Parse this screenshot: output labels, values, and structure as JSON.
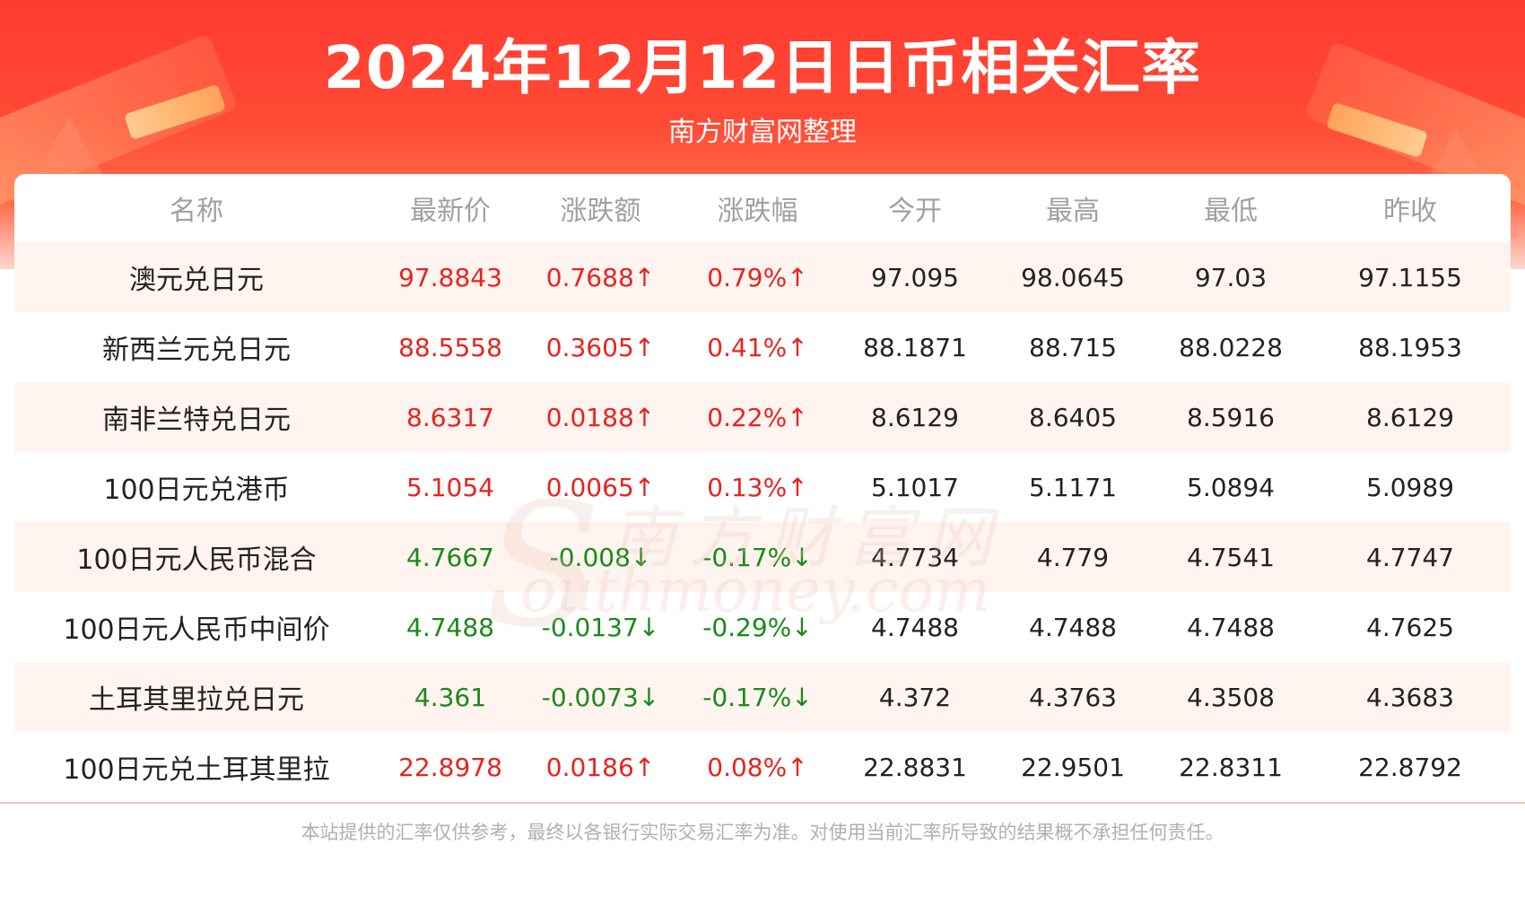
{
  "header": {
    "title": "2024年12月12日日币相关汇率",
    "subtitle": "南方财富网整理"
  },
  "watermark": {
    "cn": "南方财富网",
    "en": "outhmoney.com",
    "s": "S"
  },
  "table": {
    "columns": [
      "名称",
      "最新价",
      "涨跌额",
      "涨跌幅",
      "今开",
      "最高",
      "最低",
      "昨收"
    ],
    "rows": [
      {
        "name": "澳元兑日元",
        "latest": "97.8843",
        "change": "0.7688↑",
        "pct": "0.79%↑",
        "open": "97.095",
        "high": "98.0645",
        "low": "97.03",
        "prev": "97.1155",
        "dir": "up"
      },
      {
        "name": "新西兰元兑日元",
        "latest": "88.5558",
        "change": "0.3605↑",
        "pct": "0.41%↑",
        "open": "88.1871",
        "high": "88.715",
        "low": "88.0228",
        "prev": "88.1953",
        "dir": "up"
      },
      {
        "name": "南非兰特兑日元",
        "latest": "8.6317",
        "change": "0.0188↑",
        "pct": "0.22%↑",
        "open": "8.6129",
        "high": "8.6405",
        "low": "8.5916",
        "prev": "8.6129",
        "dir": "up"
      },
      {
        "name": "100日元兑港币",
        "latest": "5.1054",
        "change": "0.0065↑",
        "pct": "0.13%↑",
        "open": "5.1017",
        "high": "5.1171",
        "low": "5.0894",
        "prev": "5.0989",
        "dir": "up"
      },
      {
        "name": "100日元人民币混合",
        "latest": "4.7667",
        "change": "-0.008↓",
        "pct": "-0.17%↓",
        "open": "4.7734",
        "high": "4.779",
        "low": "4.7541",
        "prev": "4.7747",
        "dir": "down"
      },
      {
        "name": "100日元人民币中间价",
        "latest": "4.7488",
        "change": "-0.0137↓",
        "pct": "-0.29%↓",
        "open": "4.7488",
        "high": "4.7488",
        "low": "4.7488",
        "prev": "4.7625",
        "dir": "down"
      },
      {
        "name": "土耳其里拉兑日元",
        "latest": "4.361",
        "change": "-0.0073↓",
        "pct": "-0.17%↓",
        "open": "4.372",
        "high": "4.3763",
        "low": "4.3508",
        "prev": "4.3683",
        "dir": "down"
      },
      {
        "name": "100日元兑土耳其里拉",
        "latest": "22.8978",
        "change": "0.0186↑",
        "pct": "0.08%↑",
        "open": "22.8831",
        "high": "22.9501",
        "low": "22.8311",
        "prev": "22.8792",
        "dir": "up"
      }
    ]
  },
  "footer": {
    "disclaimer": "本站提供的汇率仅供参考，最终以各银行实际交易汇率为准。对使用当前汇率所导致的结果概不承担任何责任。"
  },
  "colors": {
    "up": "#e8231f",
    "down": "#1a8a1a",
    "banner": "#ff3b30"
  }
}
